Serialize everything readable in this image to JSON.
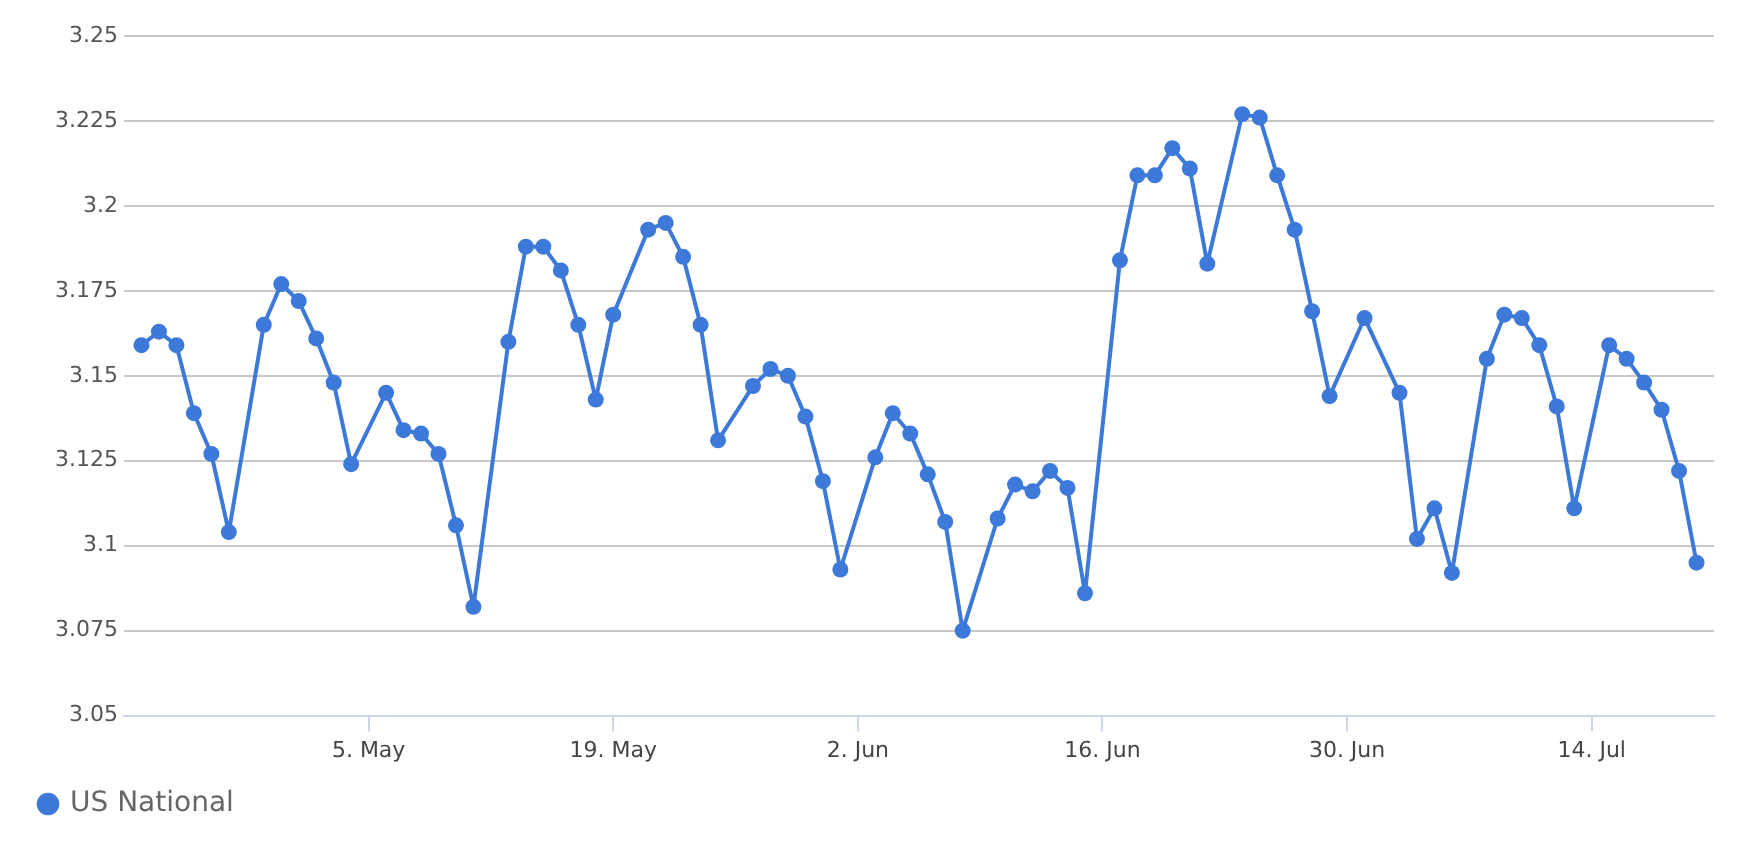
{
  "chart_data": {
    "type": "line",
    "x": [
      "--04-22",
      "--04-23",
      "--04-24",
      "--04-25",
      "--04-26",
      "--04-27",
      "--04-29",
      "--04-30",
      "--05-01",
      "--05-02",
      "--05-03",
      "--05-04",
      "--05-06",
      "--05-07",
      "--05-08",
      "--05-09",
      "--05-10",
      "--05-11",
      "--05-13",
      "--05-14",
      "--05-15",
      "--05-16",
      "--05-17",
      "--05-18",
      "--05-19",
      "--05-21",
      "--05-22",
      "--05-23",
      "--05-24",
      "--05-25",
      "--05-27",
      "--05-28",
      "--05-29",
      "--05-30",
      "--05-31",
      "--06-01",
      "--06-03",
      "--06-04",
      "--06-05",
      "--06-06",
      "--06-07",
      "--06-08",
      "--06-10",
      "--06-11",
      "--06-12",
      "--06-13",
      "--06-14",
      "--06-15",
      "--06-17",
      "--06-18",
      "--06-19",
      "--06-20",
      "--06-21",
      "--06-22",
      "--06-24",
      "--06-25",
      "--06-26",
      "--06-27",
      "--06-28",
      "--06-29",
      "--07-01",
      "--07-03",
      "--07-04",
      "--07-05",
      "--07-06",
      "--07-08",
      "--07-09",
      "--07-10",
      "--07-11",
      "--07-12",
      "--07-13",
      "--07-15",
      "--07-16",
      "--07-17",
      "--07-18",
      "--07-19",
      "--07-20"
    ],
    "series": [
      {
        "name": "US National",
        "color": "#3d79d9",
        "values": [
          3.159,
          3.163,
          3.159,
          3.139,
          3.127,
          3.104,
          3.165,
          3.177,
          3.172,
          3.161,
          3.148,
          3.124,
          3.145,
          3.134,
          3.133,
          3.127,
          3.106,
          3.082,
          3.16,
          3.188,
          3.188,
          3.181,
          3.165,
          3.143,
          3.168,
          3.193,
          3.195,
          3.185,
          3.165,
          3.131,
          3.147,
          3.152,
          3.15,
          3.138,
          3.119,
          3.093,
          3.126,
          3.139,
          3.133,
          3.121,
          3.107,
          3.075,
          3.108,
          3.118,
          3.116,
          3.122,
          3.117,
          3.086,
          3.184,
          3.209,
          3.209,
          3.217,
          3.211,
          3.183,
          3.227,
          3.226,
          3.209,
          3.193,
          3.169,
          3.144,
          3.167,
          3.145,
          3.102,
          3.111,
          3.092,
          3.155,
          3.168,
          3.167,
          3.159,
          3.141,
          3.111,
          3.159,
          3.155,
          3.148,
          3.14,
          3.122,
          3.095
        ]
      }
    ],
    "xlim": [
      "--04-21",
      "--07-21"
    ],
    "xticks": [
      {
        "value": "--05-05",
        "label": "5. May"
      },
      {
        "value": "--05-19",
        "label": "19. May"
      },
      {
        "value": "--06-02",
        "label": "2. Jun"
      },
      {
        "value": "--06-16",
        "label": "16. Jun"
      },
      {
        "value": "--06-30",
        "label": "30. Jun"
      },
      {
        "value": "--07-14",
        "label": "14. Jul"
      }
    ],
    "ylim": [
      3.05,
      3.25
    ],
    "yticks": [
      3.05,
      3.075,
      3.1,
      3.125,
      3.15,
      3.175,
      3.2,
      3.225,
      3.25
    ],
    "grid": "y",
    "legend": "bottom left",
    "marker": "circle",
    "line_style": "solid"
  }
}
